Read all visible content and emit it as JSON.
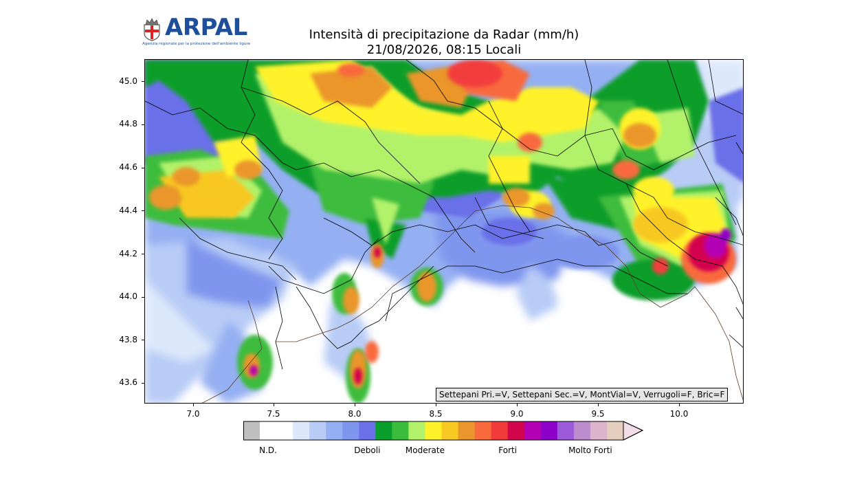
{
  "logo": {
    "name": "ARPAL",
    "tagline": "Agenzia regionale per la protezione dell'ambiente ligure",
    "icon": "liguria-shield-icon"
  },
  "title": {
    "line1": "Intensità di precipitazione da Radar (mm/h)",
    "line2": "21/08/2026, 08:15 Locali"
  },
  "map": {
    "lon_range": [
      6.7,
      10.4
    ],
    "lat_range": [
      43.5,
      45.1
    ],
    "x_ticks": [
      "7.0",
      "7.5",
      "8.0",
      "8.5",
      "9.0",
      "9.5",
      "10.0"
    ],
    "x_tick_values": [
      7.0,
      7.5,
      8.0,
      8.5,
      9.0,
      9.5,
      10.0
    ],
    "y_ticks": [
      "43.6",
      "43.8",
      "44.0",
      "44.2",
      "44.4",
      "44.6",
      "44.8",
      "45.0"
    ],
    "y_tick_values": [
      43.6,
      43.8,
      44.0,
      44.2,
      44.4,
      44.6,
      44.8,
      45.0
    ]
  },
  "radar_settings": "Settepani Pri.=V, Settepani Sec.=V, MontVial=V, Verrugoli=F, Bric=F",
  "colorbar": {
    "colors": [
      "#c0c0c0",
      "#ffffff",
      "#ffffff",
      "#dde8fb",
      "#b8ccf6",
      "#94b0f2",
      "#7f96ee",
      "#6a70e8",
      "#0a9e2c",
      "#3cbc3c",
      "#b2f26a",
      "#fff22a",
      "#f8c823",
      "#ea962c",
      "#f86a3c",
      "#f23c3c",
      "#d2064e",
      "#b400b4",
      "#8c00c8",
      "#9c5ad8",
      "#bc8ccc",
      "#dcb4cc",
      "#e6cebe"
    ],
    "extend_color": "#f2dce8",
    "labels": [
      {
        "text": "N.D.",
        "index": 1
      },
      {
        "text": "Deboli",
        "index": 7
      },
      {
        "text": "Moderate",
        "index": 10.5
      },
      {
        "text": "Forti",
        "index": 15.5
      },
      {
        "text": "Molto Forti",
        "index": 20.5
      }
    ]
  }
}
